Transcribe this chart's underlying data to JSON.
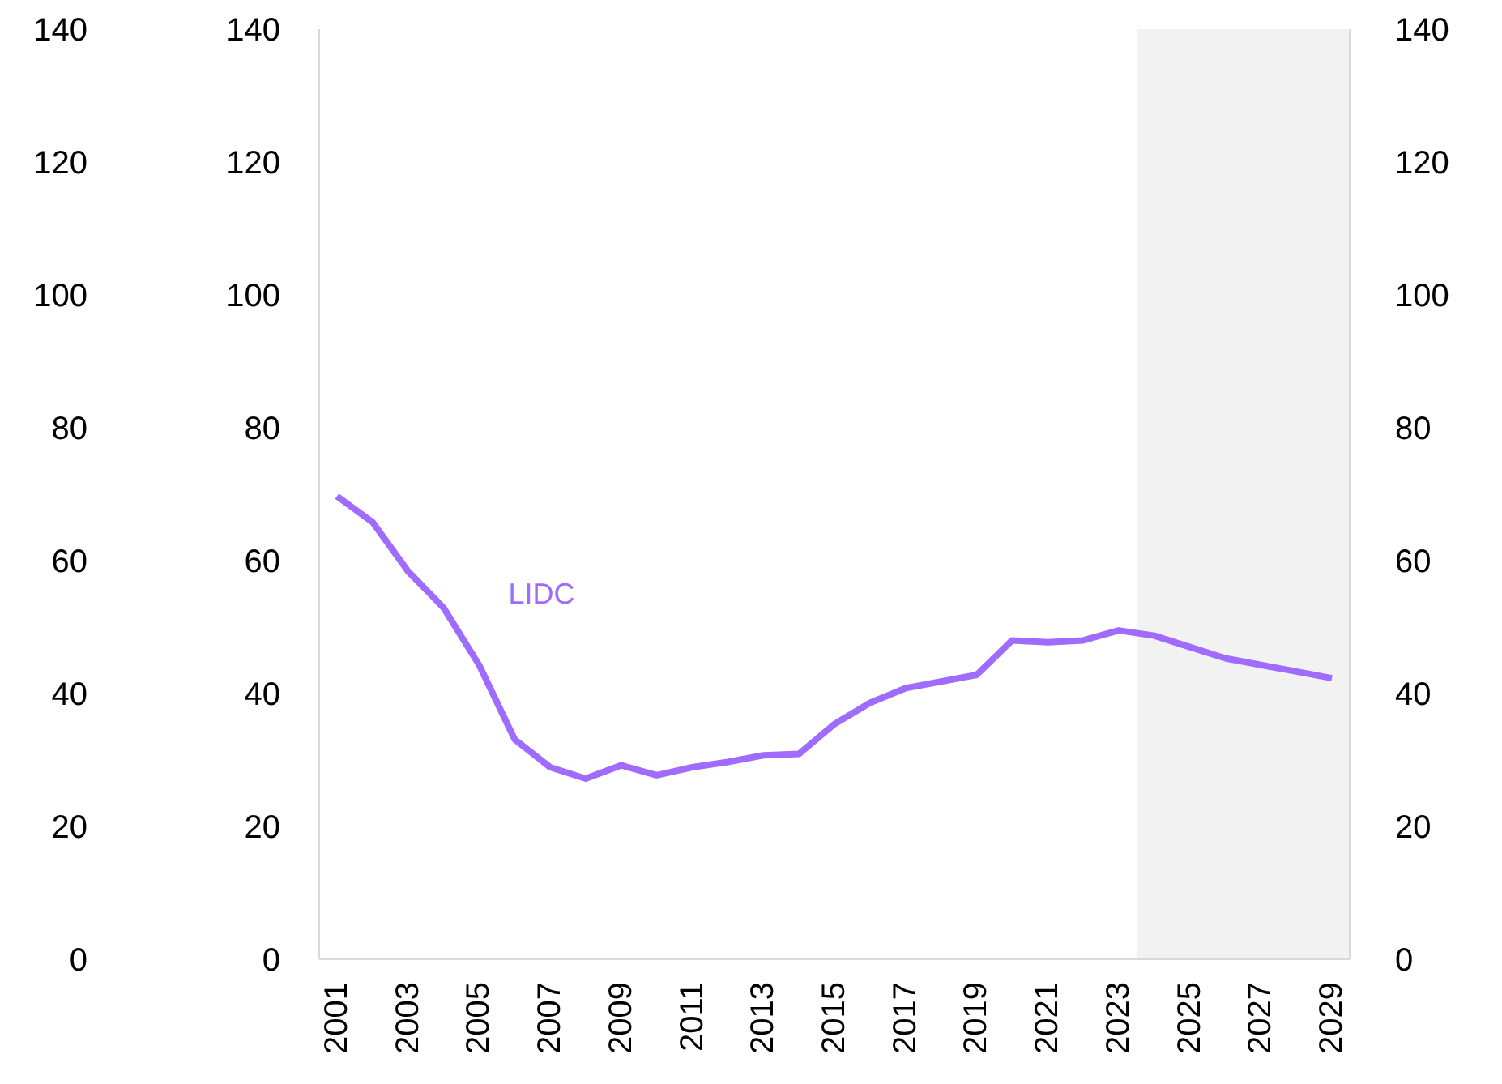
{
  "chart_data": {
    "type": "line",
    "x": [
      2001,
      2002,
      2003,
      2004,
      2005,
      2006,
      2007,
      2008,
      2009,
      2010,
      2011,
      2012,
      2013,
      2014,
      2015,
      2016,
      2017,
      2018,
      2019,
      2020,
      2021,
      2022,
      2023,
      2024,
      2025,
      2026,
      2027,
      2028,
      2029
    ],
    "series": [
      {
        "name": "LIDC",
        "color": "#a06cff",
        "values": [
          69.7,
          65.8,
          58.4,
          52.9,
          44.3,
          33.1,
          28.9,
          27.2,
          29.2,
          27.7,
          28.9,
          29.7,
          30.7,
          30.9,
          35.4,
          38.6,
          40.8,
          41.8,
          42.8,
          48.0,
          47.7,
          48.0,
          49.5,
          48.7,
          47.0,
          45.3,
          44.3,
          43.3,
          42.3
        ]
      }
    ],
    "xlim": [
      2000.5,
      2029.5
    ],
    "xticks": [
      2001,
      2003,
      2005,
      2007,
      2009,
      2011,
      2013,
      2015,
      2017,
      2019,
      2021,
      2023,
      2025,
      2027,
      2029
    ],
    "ylim": [
      0,
      140
    ],
    "yticks": [
      0,
      20,
      40,
      60,
      80,
      100,
      120,
      140
    ],
    "y2lim": [
      0,
      140
    ],
    "y2ticks": [
      0,
      20,
      40,
      60,
      80,
      100,
      120,
      140
    ],
    "y3lim": [
      0,
      140
    ],
    "y3ticks": [
      0,
      20,
      40,
      60,
      80,
      100,
      120,
      140
    ],
    "bands": [
      {
        "axis": "x",
        "from": 2023.5,
        "to": 2029.5,
        "color": "#f2f2f2"
      }
    ],
    "grid": false,
    "legend": false,
    "marker": "none",
    "line_style": "solid"
  }
}
